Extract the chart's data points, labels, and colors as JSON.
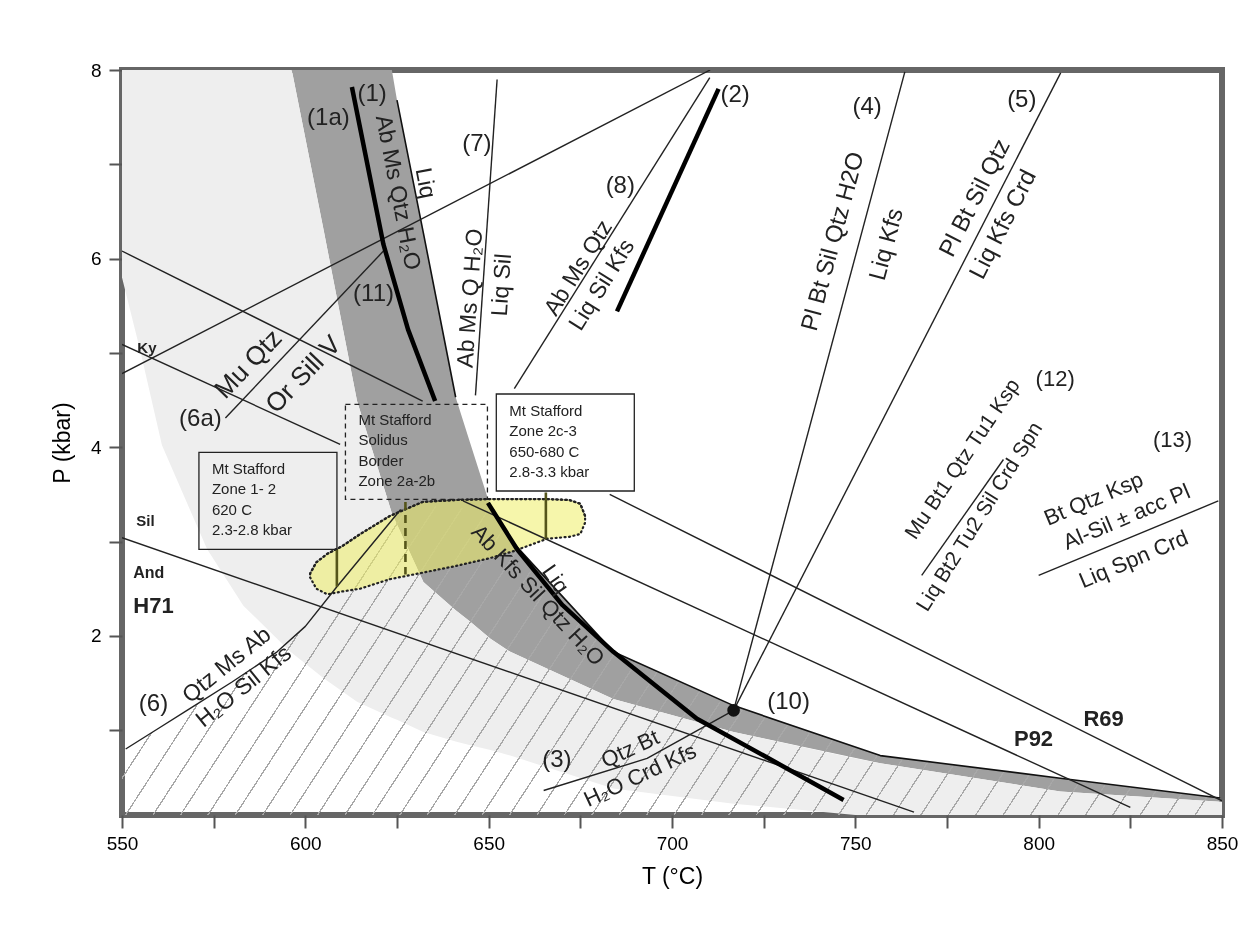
{
  "chart_data": {
    "type": "line",
    "xlabel": "T (°C)",
    "ylabel": "P (kbar)",
    "xlim": [
      550,
      850
    ],
    "ylim": [
      0.1,
      8
    ],
    "xticks": [
      550,
      {
        "value": 575,
        "label": null
      },
      600,
      {
        "value": 625,
        "label": null
      },
      650,
      {
        "value": 675,
        "label": null
      },
      700,
      {
        "value": 725,
        "label": null
      },
      750,
      {
        "value": 775,
        "label": null
      },
      800,
      {
        "value": 825,
        "label": null
      },
      850
    ],
    "yticks": [
      {
        "value": 1,
        "label": null
      },
      2,
      {
        "value": 3,
        "label": null
      },
      4,
      {
        "value": 5,
        "label": null
      },
      6,
      {
        "value": 7,
        "label": null
      },
      8
    ],
    "series": [
      {
        "color": "#111111",
        "x": [
          596.3,
          605,
          614.1,
          623.6,
          625,
          632.2,
          641,
          645,
          650.5,
          655.9,
          684,
          716.8,
          756.8,
          805.9,
          849.5
        ],
        "values": [
          null,
          null,
          null,
          null,
          7.68,
          6.27,
          4.53,
          null,
          3.37,
          3.02,
          1.83,
          1.26,
          0.73,
          0.49,
          0.28
        ],
        "lower": [
          8,
          6.3,
          4.49,
          3.3,
          3.18,
          2.57,
          2.27,
          2.15,
          1.97,
          1.83,
          1.33,
          0.98,
          0.65,
          0.35,
          0.24
        ],
        "upper": [
          8,
          8,
          8,
          8,
          7.68,
          6.27,
          4.53,
          4.04,
          3.37,
          3.02,
          1.83,
          1.26,
          0.73,
          0.49,
          0.28
        ]
      },
      {
        "color": "#eeeeee",
        "x": [
          550,
          555,
          560.9,
          573.2,
          583.1,
          595.9,
          596.3,
          605,
          614.1,
          623.6,
          625,
          632.2,
          641,
          645,
          650.5,
          655.9,
          684,
          716.8,
          750,
          756.8,
          805.9,
          849.5,
          850
        ],
        "values": [
          null,
          null,
          null,
          null,
          null,
          null,
          null,
          null,
          null,
          null,
          null,
          null,
          null,
          null,
          null,
          null,
          null,
          null,
          null,
          null,
          null,
          null,
          null
        ],
        "lower": [
          5.8,
          5.02,
          4.02,
          2.92,
          2.32,
          1.83,
          1.82,
          1.55,
          1.3,
          1.13,
          1.11,
          0.98,
          0.88,
          0.84,
          0.79,
          0.73,
          0.38,
          0.22,
          0.1,
          0.1,
          0.1,
          0.1,
          0.1
        ],
        "upper": [
          8,
          8,
          8,
          8,
          8,
          8,
          8,
          6.3,
          4.49,
          3.3,
          3.18,
          2.57,
          2.27,
          2.15,
          1.97,
          1.83,
          1.33,
          0.98,
          0.7,
          0.65,
          0.35,
          0.24,
          0.24
        ]
      },
      {
        "color": "#222222",
        "x": [
          550,
          551,
          560,
          568.6,
          580,
          592.3,
          600,
          608.6,
          626,
          627.3,
          651,
          657.7,
          684,
          716.8,
          756.8,
          805.9,
          850
        ],
        "values": [
          null,
          0.8,
          1.02,
          1.23,
          1.51,
          1.83,
          2.1,
          2.52,
          3.34,
          null,
          null,
          null,
          null,
          null,
          null,
          null,
          null
        ],
        "lower": [
          0.1,
          0.1,
          0.1,
          0.1,
          0.1,
          0.1,
          0.1,
          0.1,
          0.1,
          0.1,
          0.1,
          0.1,
          0.1,
          0.1,
          0.1,
          0.1,
          0.1
        ],
        "upper": [
          0.78,
          0.8,
          1.02,
          1.23,
          1.51,
          1.83,
          2.1,
          2.52,
          3.34,
          3.4,
          3.33,
          2.92,
          1.83,
          1.26,
          0.73,
          0.49,
          0.28
        ]
      },
      {
        "color": "#222222",
        "line_style": "dotted",
        "x": [
          601.3,
          603,
          606,
          610,
          615,
          623,
          632,
          641,
          650,
          657,
          666,
          672,
          675,
          676.3
        ],
        "values": [
          2.66,
          2.78,
          2.87,
          2.95,
          3.08,
          3.27,
          3.42,
          3.44,
          3.45,
          3.45,
          3.45,
          3.44,
          3.4,
          3.27
        ],
        "lower": [
          2.62,
          2.5,
          2.44,
          2.47,
          2.5,
          2.6,
          2.67,
          2.74,
          2.82,
          2.9,
          3.03,
          3.05,
          3.08,
          3.2
        ],
        "upper": [
          2.66,
          2.78,
          2.87,
          2.95,
          3.08,
          3.27,
          3.42,
          3.44,
          3.45,
          3.45,
          3.45,
          3.44,
          3.4,
          3.27
        ]
      },
      {
        "color": "#222222",
        "x": [
          550,
          632,
          645,
          683,
          850
        ],
        "values": [
          6.08,
          4.49,
          null,
          3.5,
          0.25
        ]
      },
      {
        "color": "#222222",
        "x": [
          550,
          609.5,
          625,
          643,
          825
        ],
        "values": [
          5.09,
          4.03,
          null,
          3.43,
          0.18
        ]
      },
      {
        "color": "#222222",
        "x": [
          550,
          766
        ],
        "values": [
          3.04,
          0.13
        ]
      },
      {
        "color": "#222222",
        "x": [
          550,
          710.4
        ],
        "values": [
          4.78,
          8
        ]
      },
      {
        "color": "#222222",
        "x": [
          652.3,
          646.4
        ],
        "values": [
          7.9,
          4.55
        ]
      },
      {
        "color": "#222222",
        "x": [
          710.3,
          657
        ],
        "values": [
          7.92,
          4.62
        ]
      },
      {
        "color": "#222222",
        "x": [
          716.8,
          763.5
        ],
        "values": [
          1.21,
          7.98
        ]
      },
      {
        "color": "#222222",
        "x": [
          716.8,
          806
        ],
        "values": [
          1.21,
          7.97
        ]
      },
      {
        "color": "#222222",
        "x": [
          665,
          693.2,
          716.8
        ],
        "values": [
          0.36,
          0.7,
          1.21
        ]
      },
      {
        "color": "#222222",
        "x": [
          578.2,
          621.3
        ],
        "values": [
          4.31,
          6.08
        ]
      },
      {
        "color": "#222222",
        "x": [
          768.1,
          790.4
        ],
        "values": [
          2.64,
          3.87
        ]
      },
      {
        "color": "#222222",
        "x": [
          800,
          849
        ],
        "values": [
          2.64,
          3.43
        ]
      },
      {
        "color": "#55551a",
        "x": [
          608.6,
          608.6
        ],
        "values": [
          2.92,
          2.52
        ]
      },
      {
        "color": "#55551a",
        "line_style": "dashed",
        "x": [
          627.3,
          627.3
        ],
        "values": [
          3.42,
          2.65
        ]
      },
      {
        "color": "#55551a",
        "x": [
          665.6,
          665.6
        ],
        "values": [
          3.52,
          3.03
        ]
      },
      {
        "color": "#000000",
        "x": [
          612.7,
          621.3,
          628,
          635.4,
          642,
          649.8,
          657.7,
          670,
          684,
          706.8,
          725,
          746.8
        ],
        "values": [
          7.82,
          6.15,
          5.25,
          4.49,
          null,
          3.41,
          2.92,
          2.33,
          1.83,
          1.12,
          0.73,
          0.26
        ]
      },
      {
        "color": "#000000",
        "x": [
          685,
          712.7
        ],
        "values": [
          5.44,
          7.8
        ]
      },
      {
        "type": "scatter",
        "marker": "circle",
        "color": "#111111",
        "x": [
          716.8
        ],
        "values": [
          1.21
        ]
      }
    ],
    "annotations": [
      "(1a)",
      "(1)",
      "Ab Ms Qtz H₂O",
      "Liq",
      "(7)",
      "Ab Ms Q H₂O",
      "Liq Sil",
      "(8)",
      "Ab Ms Qtz",
      "Liq Sil Kfs",
      "(2)",
      "(4)",
      "Pl Bt Sil Qtz H2O",
      "Liq Kfs",
      "(5)",
      "Pl Bt Sil Qtz",
      "Liq Kfs Crd",
      "(12)",
      "Mu Bt1 Qtz Tu1 Ksp",
      "Liq Bt2 Tu2 Sil Crd Spn",
      "(13)",
      "Bt Qtz Ksp",
      "Al-Sil ± acc Pl",
      "Liq Spn Crd",
      "R69",
      "P92",
      "(10)",
      "(3)",
      "Qtz Bt",
      "H₂O Crd Kfs",
      "Liq",
      "Ab Kfs Sil Qtz H₂O",
      "(11)",
      "Mu Qtz",
      "Or Sill V",
      "(6a)",
      "Ky",
      "Sil",
      "And",
      "H71",
      "(6)",
      "Qtz Ms Ab",
      "H₂O Sil Kfs",
      "Mt Stafford\nZone 1- 2\n620 C\n2.3-2.8 kbar",
      "Mt Stafford\nSolidus\nBorder\nZone 2a-2b",
      "Mt Stafford\nZone 2c-3\n650-680 C\n2.8-3.3 kbar"
    ]
  }
}
